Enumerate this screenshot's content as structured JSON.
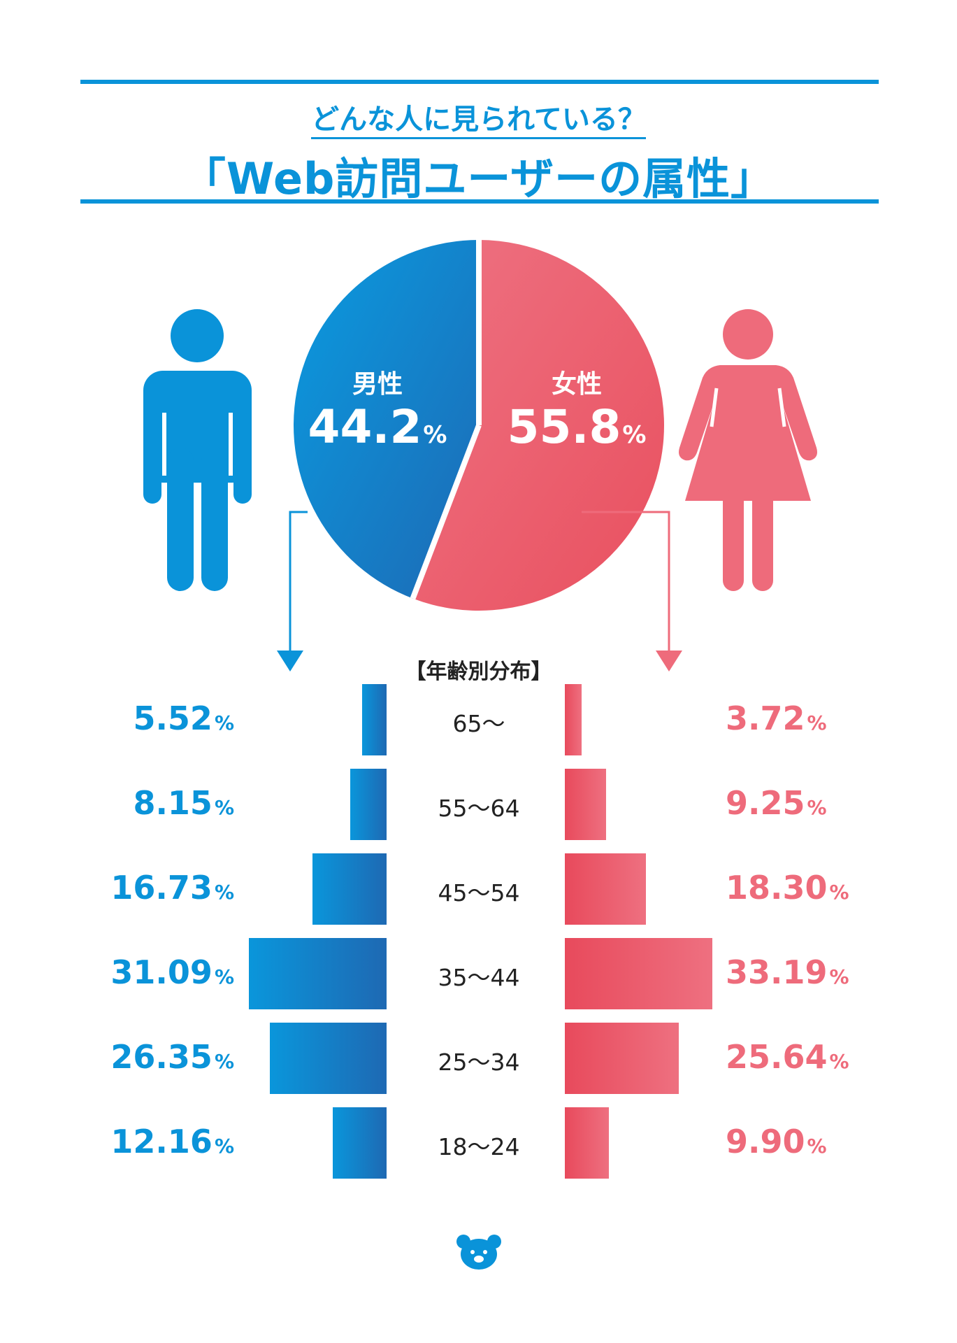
{
  "header": {
    "subtitle": "どんな人に見られている？",
    "title": "「Web訪問ユーザーの属性」"
  },
  "colors": {
    "male": "#0a93d9",
    "female": "#ee6b7b",
    "rule": "#0a93d9"
  },
  "icons": {
    "male": "male-figure-icon",
    "female": "female-figure-icon",
    "footer": "bear-logo-icon"
  },
  "gender": {
    "male": {
      "label": "男性",
      "value": "44.2",
      "unit": "%"
    },
    "female": {
      "label": "女性",
      "value": "55.8",
      "unit": "%"
    }
  },
  "age_heading": "【年齢別分布】",
  "chart_data": [
    {
      "type": "pie",
      "categories": [
        "男性",
        "女性"
      ],
      "values": [
        44.2,
        55.8
      ],
      "unit": "%"
    },
    {
      "type": "bar",
      "categories": [
        "65〜",
        "55〜64",
        "45〜54",
        "35〜44",
        "25〜34",
        "18〜24"
      ],
      "series": [
        {
          "name": "男性",
          "values": [
            5.52,
            8.15,
            16.73,
            31.09,
            26.35,
            12.16
          ]
        },
        {
          "name": "女性",
          "values": [
            3.72,
            9.25,
            18.3,
            33.19,
            25.64,
            9.9
          ]
        }
      ],
      "labels_male": [
        "5.52",
        "8.15",
        "16.73",
        "31.09",
        "26.35",
        "12.16"
      ],
      "labels_female": [
        "3.72",
        "9.25",
        "18.30",
        "33.19",
        "25.64",
        "9.90"
      ],
      "unit": "%"
    }
  ]
}
